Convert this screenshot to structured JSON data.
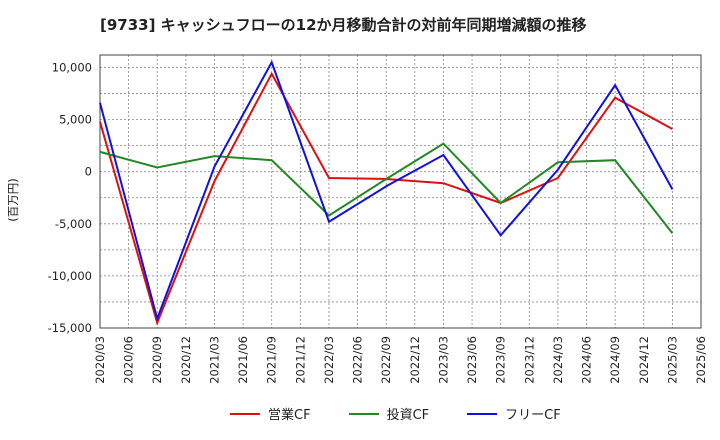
{
  "chart_data": {
    "type": "line",
    "title": "[9733]  キャッシュフローの12か月移動合計の対前年同期増減額の推移",
    "ylabel": "(百万円)",
    "xlabel": "",
    "ylim": [
      -15000,
      11200
    ],
    "yticks": [
      10000,
      5000,
      0,
      -5000,
      -10000,
      -15000
    ],
    "ytick_labels": [
      "10,000",
      "5,000",
      "0",
      "-5,000",
      "-10,000",
      "-15,000"
    ],
    "x_labels": [
      "2020/03",
      "2020/06",
      "2020/09",
      "2020/12",
      "2021/03",
      "2021/06",
      "2021/09",
      "2021/12",
      "2022/03",
      "2022/06",
      "2022/09",
      "2022/12",
      "2023/03",
      "2023/06",
      "2023/09",
      "2023/12",
      "2024/03",
      "2024/06",
      "2024/09",
      "2024/12",
      "2025/03",
      "2025/06"
    ],
    "x": [
      "2020/03",
      "2020/09",
      "2021/03",
      "2021/09",
      "2022/03",
      "2022/09",
      "2023/03",
      "2023/09",
      "2024/03",
      "2024/09",
      "2025/03"
    ],
    "series": [
      {
        "name": "営業CF",
        "color": "#dd1111",
        "values": [
          4800,
          -14500,
          -900,
          9400,
          -600,
          -700,
          -1100,
          -3000,
          -600,
          7100,
          4100
        ]
      },
      {
        "name": "投資CF",
        "color": "#228822",
        "values": [
          1900,
          400,
          1500,
          1100,
          -4200,
          -700,
          2700,
          -3000,
          900,
          1100,
          -5900
        ]
      },
      {
        "name": "フリーCF",
        "color": "#1111dd",
        "values": [
          6600,
          -14100,
          500,
          10500,
          -4800,
          -1400,
          1600,
          -6100,
          200,
          8300,
          -1700
        ]
      }
    ],
    "grid": true,
    "legend_position": "bottom"
  }
}
